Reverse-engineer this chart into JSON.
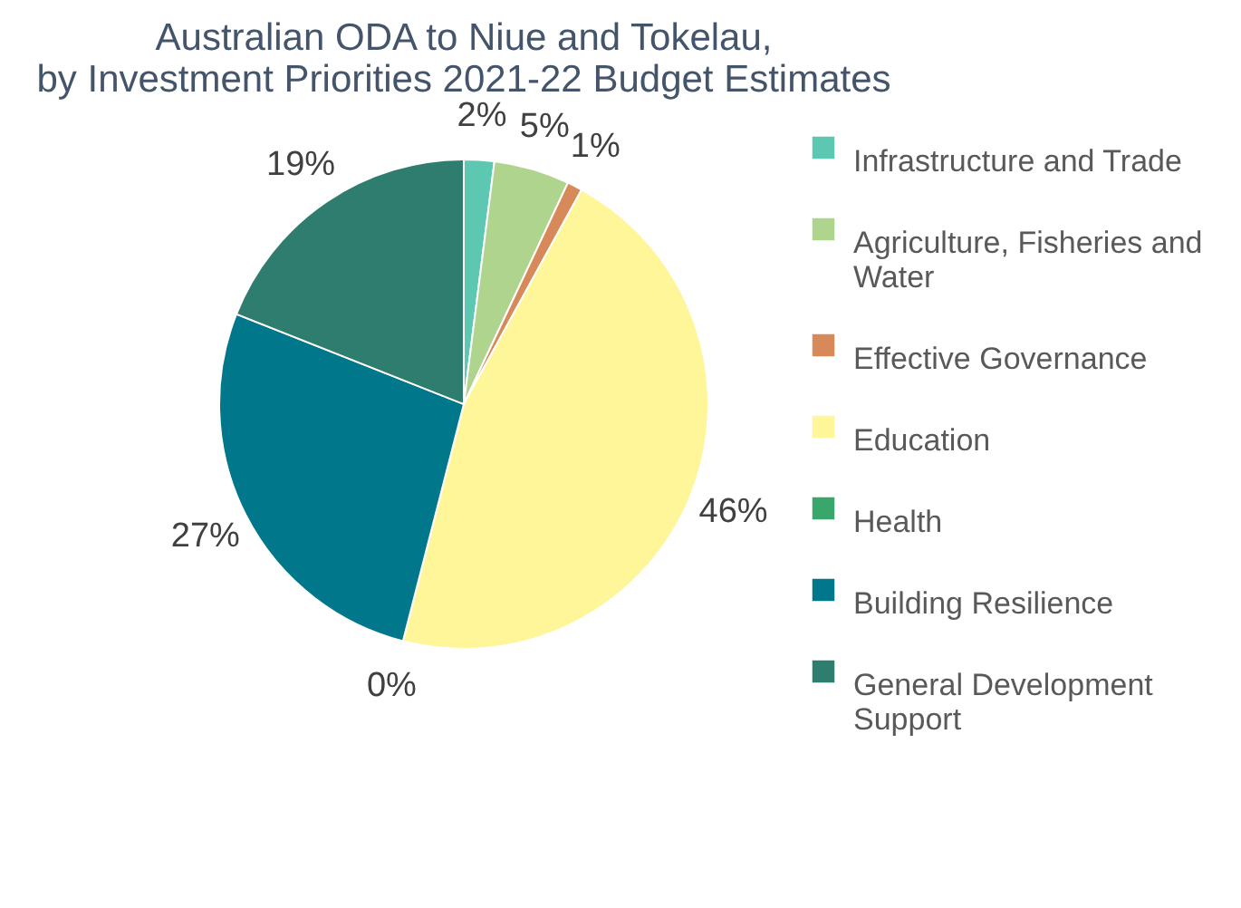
{
  "chart_data": {
    "type": "pie",
    "title": "Australian ODA to Niue and Tokelau,\nby Investment Priorities 2021-22 Budget Estimates",
    "categories": [
      "Infrastructure and Trade",
      "Agriculture, Fisheries and Water",
      "Effective Governance",
      "Education",
      "Health",
      "Building Resilience",
      "General Development Support"
    ],
    "values": [
      2,
      5,
      1,
      46,
      0,
      27,
      19
    ],
    "colors": [
      "#5cc8b2",
      "#aed48e",
      "#d8895a",
      "#fff599",
      "#3ba66b",
      "#00778a",
      "#2e7d6e"
    ],
    "value_labels": [
      "2%",
      "5%",
      "1%",
      "46%",
      "0%",
      "27%",
      "19%"
    ],
    "legend": "right"
  }
}
